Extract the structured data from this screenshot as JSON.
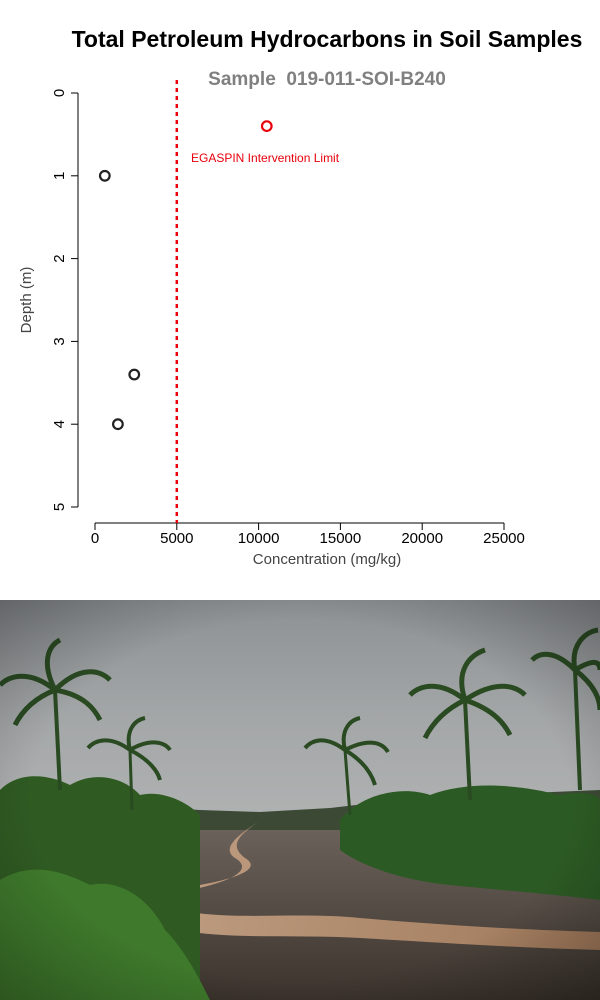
{
  "chart_data": {
    "type": "scatter",
    "title": "Total Petroleum Hydrocarbons in Soil Samples",
    "subtitle": "Sample  019-011-SOI-B240",
    "xlabel": "Concentration (mg/kg)",
    "ylabel": "Depth (m)",
    "xlim": [
      0,
      25000
    ],
    "ylim": [
      5,
      0
    ],
    "y_inverted": true,
    "x_ticks": [
      "0",
      "5000",
      "10000",
      "15000",
      "20000",
      "25000"
    ],
    "x_tick_values": [
      0,
      5000,
      10000,
      15000,
      20000,
      25000
    ],
    "y_ticks": [
      "0",
      "1",
      "2",
      "3",
      "4",
      "5"
    ],
    "y_tick_values": [
      0,
      1,
      2,
      3,
      4,
      5
    ],
    "grid": false,
    "points": [
      {
        "x": 10500,
        "y": 0.4,
        "color": "#e8000b"
      },
      {
        "x": 600,
        "y": 1.0,
        "color": "#222222"
      },
      {
        "x": 2400,
        "y": 3.4,
        "color": "#222222"
      },
      {
        "x": 1400,
        "y": 4.0,
        "color": "#222222"
      }
    ],
    "reference_line": {
      "x": 5000,
      "label": "EGASPIN Intervention Limit",
      "color": "#e8000b",
      "style": "dotted"
    }
  },
  "photo": {
    "description_colors": {
      "sky": "#9a9d9f",
      "vegetation": "#2f5a22",
      "mud": "#4a4038",
      "water": "#b58f70"
    }
  }
}
